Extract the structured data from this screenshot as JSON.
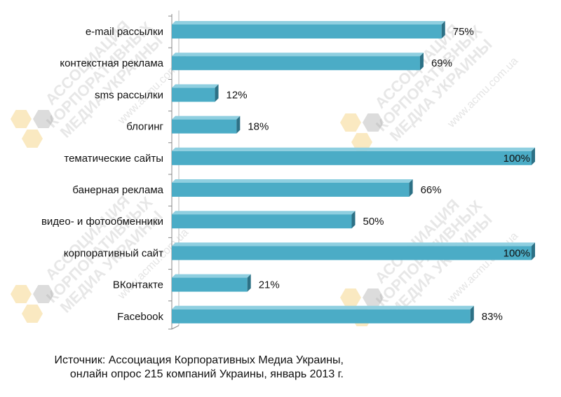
{
  "chart_data": {
    "type": "bar",
    "orientation": "horizontal",
    "categories": [
      "e-mail рассылки",
      "контекстная реклама",
      "sms рассылки",
      "блогинг",
      "тематические сайты",
      "банерная реклама",
      "видео- и фотообменники",
      "корпоративный сайт",
      "ВКонтакте",
      "Facebook"
    ],
    "values": [
      75,
      69,
      12,
      18,
      100,
      66,
      50,
      100,
      21,
      83
    ],
    "value_labels": [
      "75%",
      "69%",
      "12%",
      "18%",
      "100%",
      "66%",
      "50%",
      "100%",
      "21%",
      "83%"
    ],
    "xlim": [
      0,
      100
    ],
    "grid": false,
    "legend": "none",
    "bar_color": "#4bacc6",
    "bar_side_color": "#2d7186",
    "bar_top_color": "#8fcfe0"
  },
  "watermark": {
    "text_lines": [
      "АССОЦИАЦИЯ",
      "КОРПОРАТИВНЫХ",
      "МЕДИА УКРАИНЫ"
    ],
    "url": "www.acmu.com.ua"
  },
  "source": {
    "line1": "Источник: Ассоциация Корпоративных Медиа Украины,",
    "line2": "онлайн опрос 215 компаний Украины, январь 2013 г."
  }
}
